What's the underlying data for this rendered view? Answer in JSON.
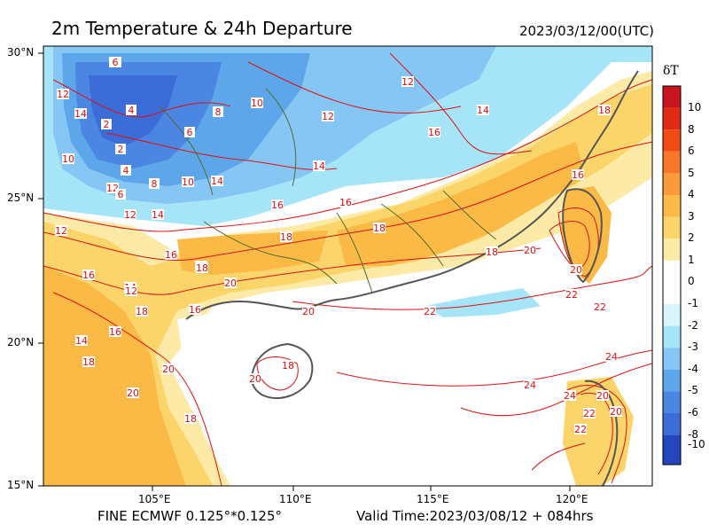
{
  "header": {
    "title": "2m Temperature & 24h Departure",
    "init_time": "2023/03/12/00(UTC)"
  },
  "footer": {
    "model": "FINE ECMWF 0.125°*0.125°",
    "valid": "Valid Time:2023/03/08/12 + 084hrs"
  },
  "axes": {
    "lat_labels": [
      "30°N",
      "25°N",
      "20°N",
      "15°N"
    ],
    "lon_labels": [
      "105°E",
      "110°E",
      "115°E",
      "120°E"
    ]
  },
  "colorbar": {
    "title": "δT",
    "labels": [
      "10",
      "8",
      "6",
      "5",
      "4",
      "3",
      "2",
      "1",
      "0",
      "-1",
      "-2",
      "-3",
      "-4",
      "-5",
      "-6",
      "-8",
      "-10"
    ],
    "colors": [
      "#c8141e",
      "#e12a14",
      "#f04b14",
      "#f7762a",
      "#fa9a3c",
      "#fbba46",
      "#fbd46a",
      "#fdeaa6",
      "#ffffff",
      "#d8f4fc",
      "#a6e4f8",
      "#86c6f4",
      "#5ea6ea",
      "#4a86e2",
      "#3c6cd8",
      "#2f58cc",
      "#2346c0"
    ]
  },
  "contour_labels": [
    "6",
    "12",
    "14",
    "4",
    "2",
    "10",
    "8",
    "6",
    "12",
    "2",
    "4",
    "10",
    "12",
    "14",
    "16",
    "14",
    "16",
    "12",
    "14",
    "18",
    "16",
    "10",
    "8",
    "16",
    "12",
    "14",
    "6",
    "12",
    "14",
    "16",
    "18",
    "18",
    "18",
    "18",
    "16",
    "12",
    "16",
    "18",
    "20",
    "18",
    "18",
    "20",
    "20",
    "20",
    "22",
    "20",
    "22",
    "20",
    "16",
    "18",
    "14",
    "20",
    "18",
    "24",
    "22",
    "22",
    "24",
    "20",
    "22",
    "20",
    "24"
  ],
  "legend_colors": {
    "contour": "#e01010",
    "coast": "#444444",
    "border": "#556b2f"
  }
}
